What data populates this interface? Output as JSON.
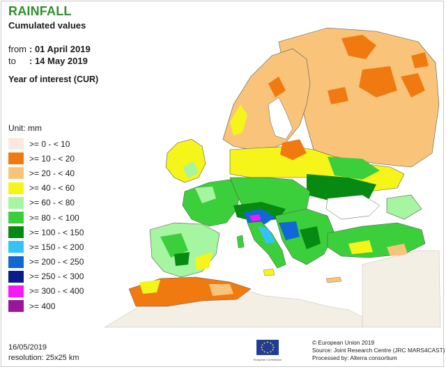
{
  "header": {
    "title": "RAINFALL",
    "subtitle": "Cumulated values",
    "from_label": "from",
    "from_value": ": 01 April 2019",
    "to_label": "to",
    "to_value": ": 14 May 2019",
    "year_of_interest": "Year of interest (CUR)"
  },
  "legend": {
    "unit": "Unit:  mm",
    "classes": [
      {
        "label": ">= 0 - < 10",
        "color": "#fbe9e0"
      },
      {
        "label": ">= 10 - < 20",
        "color": "#f07a10"
      },
      {
        "label": ">= 20 - < 40",
        "color": "#f9c47a"
      },
      {
        "label": ">= 40 - < 60",
        "color": "#f5f51a"
      },
      {
        "label": ">= 60 - < 80",
        "color": "#a6f5a0"
      },
      {
        "label": ">= 80 - < 100",
        "color": "#3ccf3c"
      },
      {
        "label": ">= 100 - < 150",
        "color": "#078a12"
      },
      {
        "label": ">= 150 - < 200",
        "color": "#33c4f5"
      },
      {
        "label": ">= 200 - < 250",
        "color": "#1068d6"
      },
      {
        "label": ">= 250 - < 300",
        "color": "#0a1c8c"
      },
      {
        "label": ">= 300 - < 400",
        "color": "#f51af5"
      },
      {
        "label": ">= 400",
        "color": "#9b159b"
      }
    ]
  },
  "footer": {
    "date": "16/05/2019",
    "resolution": "resolution: 25x25 km",
    "copyright": "© European Union 2019",
    "source": "Source: Joint Research Centre (JRC MARS4CAST)",
    "processed": "Processed by: Alterra consortium",
    "logo_text": "European Commission"
  },
  "colors": {
    "title": "#2f8f2f",
    "sea": "#ffffff",
    "non_eu_land": "#f4efe4",
    "border": "#222222"
  }
}
